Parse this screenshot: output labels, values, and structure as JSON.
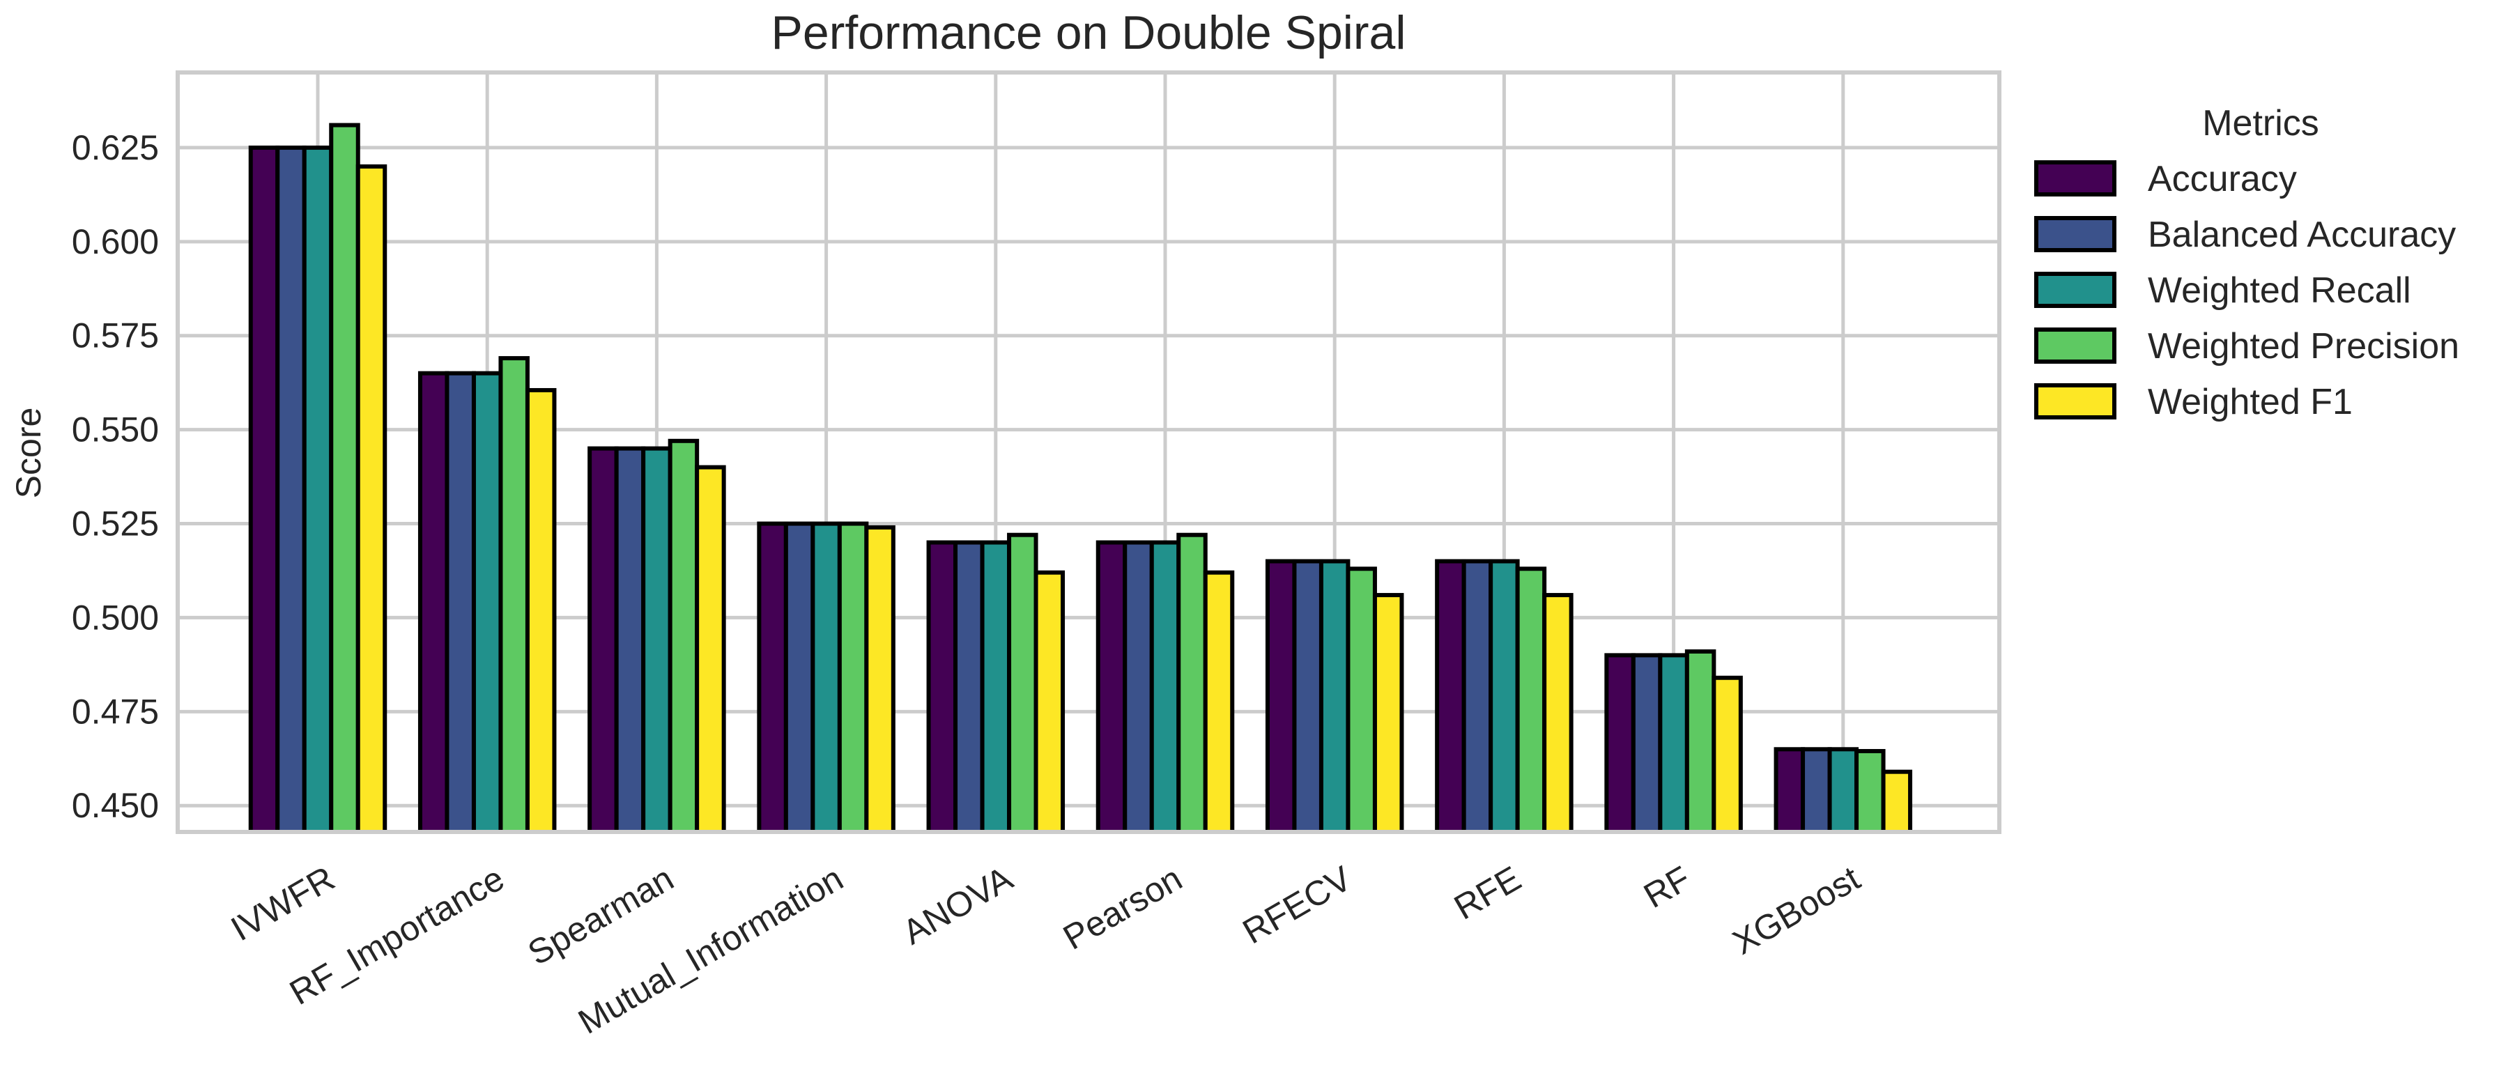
{
  "chart_data": {
    "type": "bar",
    "title": "Performance on Double Spiral",
    "xlabel": "",
    "ylabel": "Score",
    "ylim": [
      0.443,
      0.645
    ],
    "yticks": [
      "0.450",
      "0.475",
      "0.500",
      "0.525",
      "0.550",
      "0.575",
      "0.600",
      "0.625"
    ],
    "grid": true,
    "categories": [
      "IVWFR",
      "RF_Importance",
      "Spearman",
      "Mutual_Information",
      "ANOVA",
      "Pearson",
      "RFECV",
      "RFE",
      "RF",
      "XGBoost"
    ],
    "legend": {
      "title": "Metrics",
      "placement": "outside-right"
    },
    "series": [
      {
        "name": "Accuracy",
        "color": "#440154",
        "values": [
          0.625,
          0.565,
          0.545,
          0.525,
          0.52,
          0.52,
          0.515,
          0.515,
          0.49,
          0.465
        ]
      },
      {
        "name": "Balanced Accuracy",
        "color": "#3b528b",
        "values": [
          0.625,
          0.565,
          0.545,
          0.525,
          0.52,
          0.52,
          0.515,
          0.515,
          0.49,
          0.465
        ]
      },
      {
        "name": "Weighted Recall",
        "color": "#21918c",
        "values": [
          0.625,
          0.565,
          0.545,
          0.525,
          0.52,
          0.52,
          0.515,
          0.515,
          0.49,
          0.465
        ]
      },
      {
        "name": "Weighted Precision",
        "color": "#5ec962",
        "values": [
          0.631,
          0.569,
          0.547,
          0.525,
          0.522,
          0.522,
          0.513,
          0.513,
          0.491,
          0.4645
        ]
      },
      {
        "name": "Weighted F1",
        "color": "#fde725",
        "values": [
          0.62,
          0.5605,
          0.54,
          0.524,
          0.512,
          0.512,
          0.506,
          0.506,
          0.484,
          0.459
        ]
      }
    ]
  }
}
